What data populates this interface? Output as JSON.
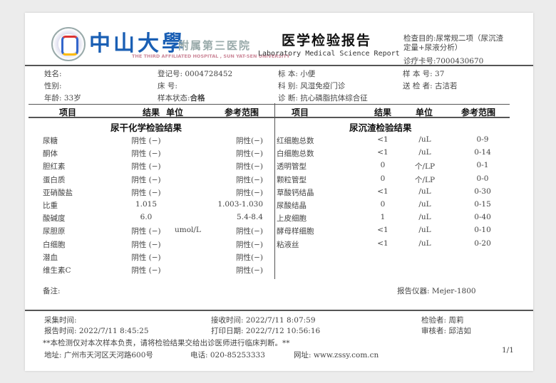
{
  "header": {
    "logo_text": "中山大學",
    "hospital_cn": "附属第三医院",
    "hospital_en": "THE THIRD AFFILIATED HOSPITAL , SUN YAT-SEN UNIVERSITY",
    "title": "医学检验报告",
    "title_en": "Laboratory Medical Science Report",
    "purpose_line1": "检查目的:尿常规二项（尿沉渣",
    "purpose_line2": "定量+尿液分析）",
    "card_no": "诊疗卡号:7000430670"
  },
  "patient": {
    "name": "姓名:",
    "gender": "性别:",
    "age": "年龄: 33岁",
    "reg_no": "登记号: 0004728452",
    "bed": "床   号:",
    "sample_status_label": "样本状态:",
    "sample_status": "合格",
    "specimen": "标   本: 小便",
    "dept": "科   别: 风湿免疫门诊",
    "diagnosis": "诊   断: 抗心磷脂抗体综合征",
    "sample_no": "样   本   号: 37",
    "sender": "送   检   者: 古洁若"
  },
  "columns": {
    "item": "项目",
    "result": "结果",
    "unit": "单位",
    "ref": "参考范围"
  },
  "left_section": {
    "title": "尿干化学检验结果",
    "rows": [
      {
        "item": "尿糖",
        "result": "阴性 (−)",
        "unit": "",
        "ref": "阴性(−)"
      },
      {
        "item": "酮体",
        "result": "阴性 (−)",
        "unit": "",
        "ref": "阴性(−)"
      },
      {
        "item": "胆红素",
        "result": "阴性 (−)",
        "unit": "",
        "ref": "阴性(−)"
      },
      {
        "item": "蛋白质",
        "result": "阴性 (−)",
        "unit": "",
        "ref": "阴性(−)"
      },
      {
        "item": "亚硝酸盐",
        "result": "阴性 (−)",
        "unit": "",
        "ref": "阴性(−)"
      },
      {
        "item": "比重",
        "result": "1.015",
        "unit": "",
        "ref": "1.003-1.030"
      },
      {
        "item": "酸碱度",
        "result": "6.0",
        "unit": "",
        "ref": "5.4-8.4"
      },
      {
        "item": "尿胆原",
        "result": "阴性 (−)",
        "unit": "umol/L",
        "ref": "阴性(−)"
      },
      {
        "item": "白细胞",
        "result": "阴性 (−)",
        "unit": "",
        "ref": "阴性(−)"
      },
      {
        "item": "潜血",
        "result": "阴性 (−)",
        "unit": "",
        "ref": "阴性(−)"
      },
      {
        "item": "维生素C",
        "result": "阴性 (−)",
        "unit": "",
        "ref": "阴性(−)"
      }
    ]
  },
  "right_section": {
    "title": "尿沉渣检验结果",
    "rows": [
      {
        "item": "红细胞总数",
        "result": "<1",
        "unit": "/uL",
        "ref": "0-9"
      },
      {
        "item": "白细胞总数",
        "result": "<1",
        "unit": "/uL",
        "ref": "0-14"
      },
      {
        "item": "透明管型",
        "result": "0",
        "unit": "个/LP",
        "ref": "0-1"
      },
      {
        "item": "颗粒管型",
        "result": "0",
        "unit": "个/LP",
        "ref": "0-0"
      },
      {
        "item": "草酸钙结晶",
        "result": "<1",
        "unit": "/uL",
        "ref": "0-30"
      },
      {
        "item": "尿酸结晶",
        "result": "0",
        "unit": "/uL",
        "ref": "0-15"
      },
      {
        "item": "上皮细胞",
        "result": "1",
        "unit": "/uL",
        "ref": "0-40"
      },
      {
        "item": "酵母样细胞",
        "result": "<1",
        "unit": "/uL",
        "ref": "0-10"
      },
      {
        "item": "粘液丝",
        "result": "<1",
        "unit": "/uL",
        "ref": "0-20"
      }
    ]
  },
  "notes": {
    "remark": "备注:",
    "instrument": "报告仪器: Mejer-1800"
  },
  "footer": {
    "collect_time": "采集时间:",
    "report_time": "报告时间: 2022/7/11 8:45:25",
    "receive_time": "接收时间: 2022/7/11 8:07:59",
    "print_date": "打印日期: 2022/7/12 10:56:16",
    "tester": "检验者: 周莉",
    "reviewer": "审核者: 邱洁如",
    "disclaimer": "**本检测仅对本次样本负责，请将检验结果交给出诊医师进行临床判断。**",
    "address": "地址: 广州市天河区天河路600号",
    "phone": "电话: 020-85253333",
    "website": "网址: www.zssy.com.cn",
    "page": "1/1"
  }
}
